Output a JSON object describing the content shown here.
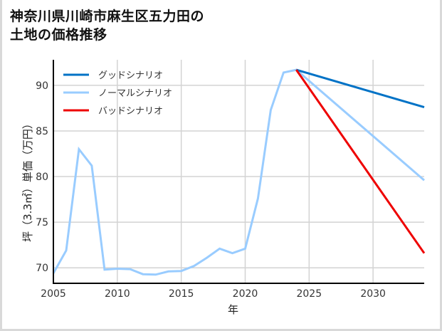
{
  "title": {
    "line1": "神奈川県川崎市麻生区五力田の",
    "line2": "土地の価格推移"
  },
  "colors": {
    "good": "#0072c6",
    "normal": "#99ccff",
    "bad": "#ee0000",
    "grid": "#d3d3d3",
    "axis": "#000000",
    "frame": "#d9d9d9"
  },
  "chart_data": {
    "type": "line",
    "title": "神奈川県川崎市麻生区五力田の土地の価格推移",
    "xlabel": "年",
    "ylabel": "坪（3.3㎡）単価（万円）",
    "xlim": [
      2005,
      2034
    ],
    "ylim": [
      68.3,
      92.8
    ],
    "xticks": [
      2005,
      2010,
      2015,
      2020,
      2025,
      2030
    ],
    "yticks": [
      70,
      75,
      80,
      85,
      90
    ],
    "grid": true,
    "legend_position": "upper left",
    "legend": [
      "グッドシナリオ",
      "ノーマルシナリオ",
      "バッドシナリオ"
    ],
    "series": [
      {
        "name": "ノーマルシナリオ",
        "key": "normal",
        "x": [
          2005,
          2006,
          2007,
          2008,
          2009,
          2010,
          2011,
          2012,
          2013,
          2014,
          2015,
          2016,
          2017,
          2018,
          2019,
          2020,
          2021,
          2022,
          2023,
          2024,
          2034
        ],
        "values": [
          69.4,
          71.9,
          83.0,
          81.2,
          69.8,
          69.9,
          69.85,
          69.3,
          69.25,
          69.6,
          69.65,
          70.2,
          71.1,
          72.1,
          71.6,
          72.1,
          77.6,
          87.3,
          91.4,
          91.7,
          79.6
        ]
      },
      {
        "name": "グッドシナリオ",
        "key": "good",
        "x": [
          2024,
          2034
        ],
        "values": [
          91.7,
          87.6
        ]
      },
      {
        "name": "バッドシナリオ",
        "key": "bad",
        "x": [
          2024,
          2034
        ],
        "values": [
          91.7,
          71.6
        ]
      }
    ]
  }
}
